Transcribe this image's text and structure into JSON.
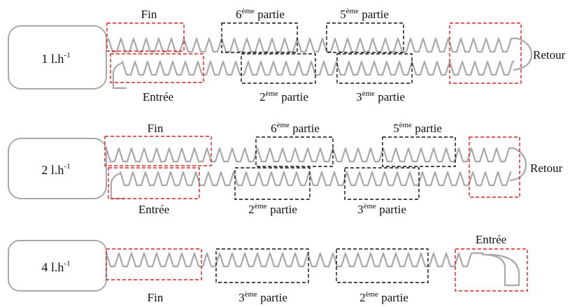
{
  "configurations": [
    {
      "flow_rate": {
        "value": "1 l.h",
        "exponent": "-1"
      },
      "top_labels": [
        {
          "key": "fin",
          "text": "Fin"
        },
        {
          "key": "p6",
          "num": "6",
          "sup": "ème",
          "word": " partie"
        },
        {
          "key": "p5",
          "num": "5",
          "sup": "ème",
          "word": " partie"
        }
      ],
      "bottom_labels": [
        {
          "key": "entree",
          "text": "Entrée"
        },
        {
          "key": "p2",
          "num": "2",
          "sup": "ème",
          "word": " partie"
        },
        {
          "key": "p3",
          "num": "3",
          "sup": "ème",
          "word": " partie"
        }
      ],
      "side_label": "Retour"
    },
    {
      "flow_rate": {
        "value": "2 l.h",
        "exponent": "-1"
      },
      "top_labels": [
        {
          "key": "fin",
          "text": "Fin"
        },
        {
          "key": "p6",
          "num": "6",
          "sup": "ème",
          "word": " partie"
        },
        {
          "key": "p5",
          "num": "5",
          "sup": "ème",
          "word": " partie"
        }
      ],
      "bottom_labels": [
        {
          "key": "entree",
          "text": "Entrée"
        },
        {
          "key": "p2",
          "num": "2",
          "sup": "ème",
          "word": " partie"
        },
        {
          "key": "p3",
          "num": "3",
          "sup": "ème",
          "word": " partie"
        }
      ],
      "side_label": "Retour"
    },
    {
      "flow_rate": {
        "value": "4 l.h",
        "exponent": "-1"
      },
      "top_labels": [
        {
          "key": "entree",
          "text": "Entrée"
        }
      ],
      "bottom_labels": [
        {
          "key": "fin",
          "text": "Fin"
        },
        {
          "key": "p3",
          "num": "3",
          "sup": "ème",
          "word": " partie"
        },
        {
          "key": "p2",
          "num": "2",
          "sup": "ème",
          "word": " partie"
        }
      ]
    }
  ]
}
